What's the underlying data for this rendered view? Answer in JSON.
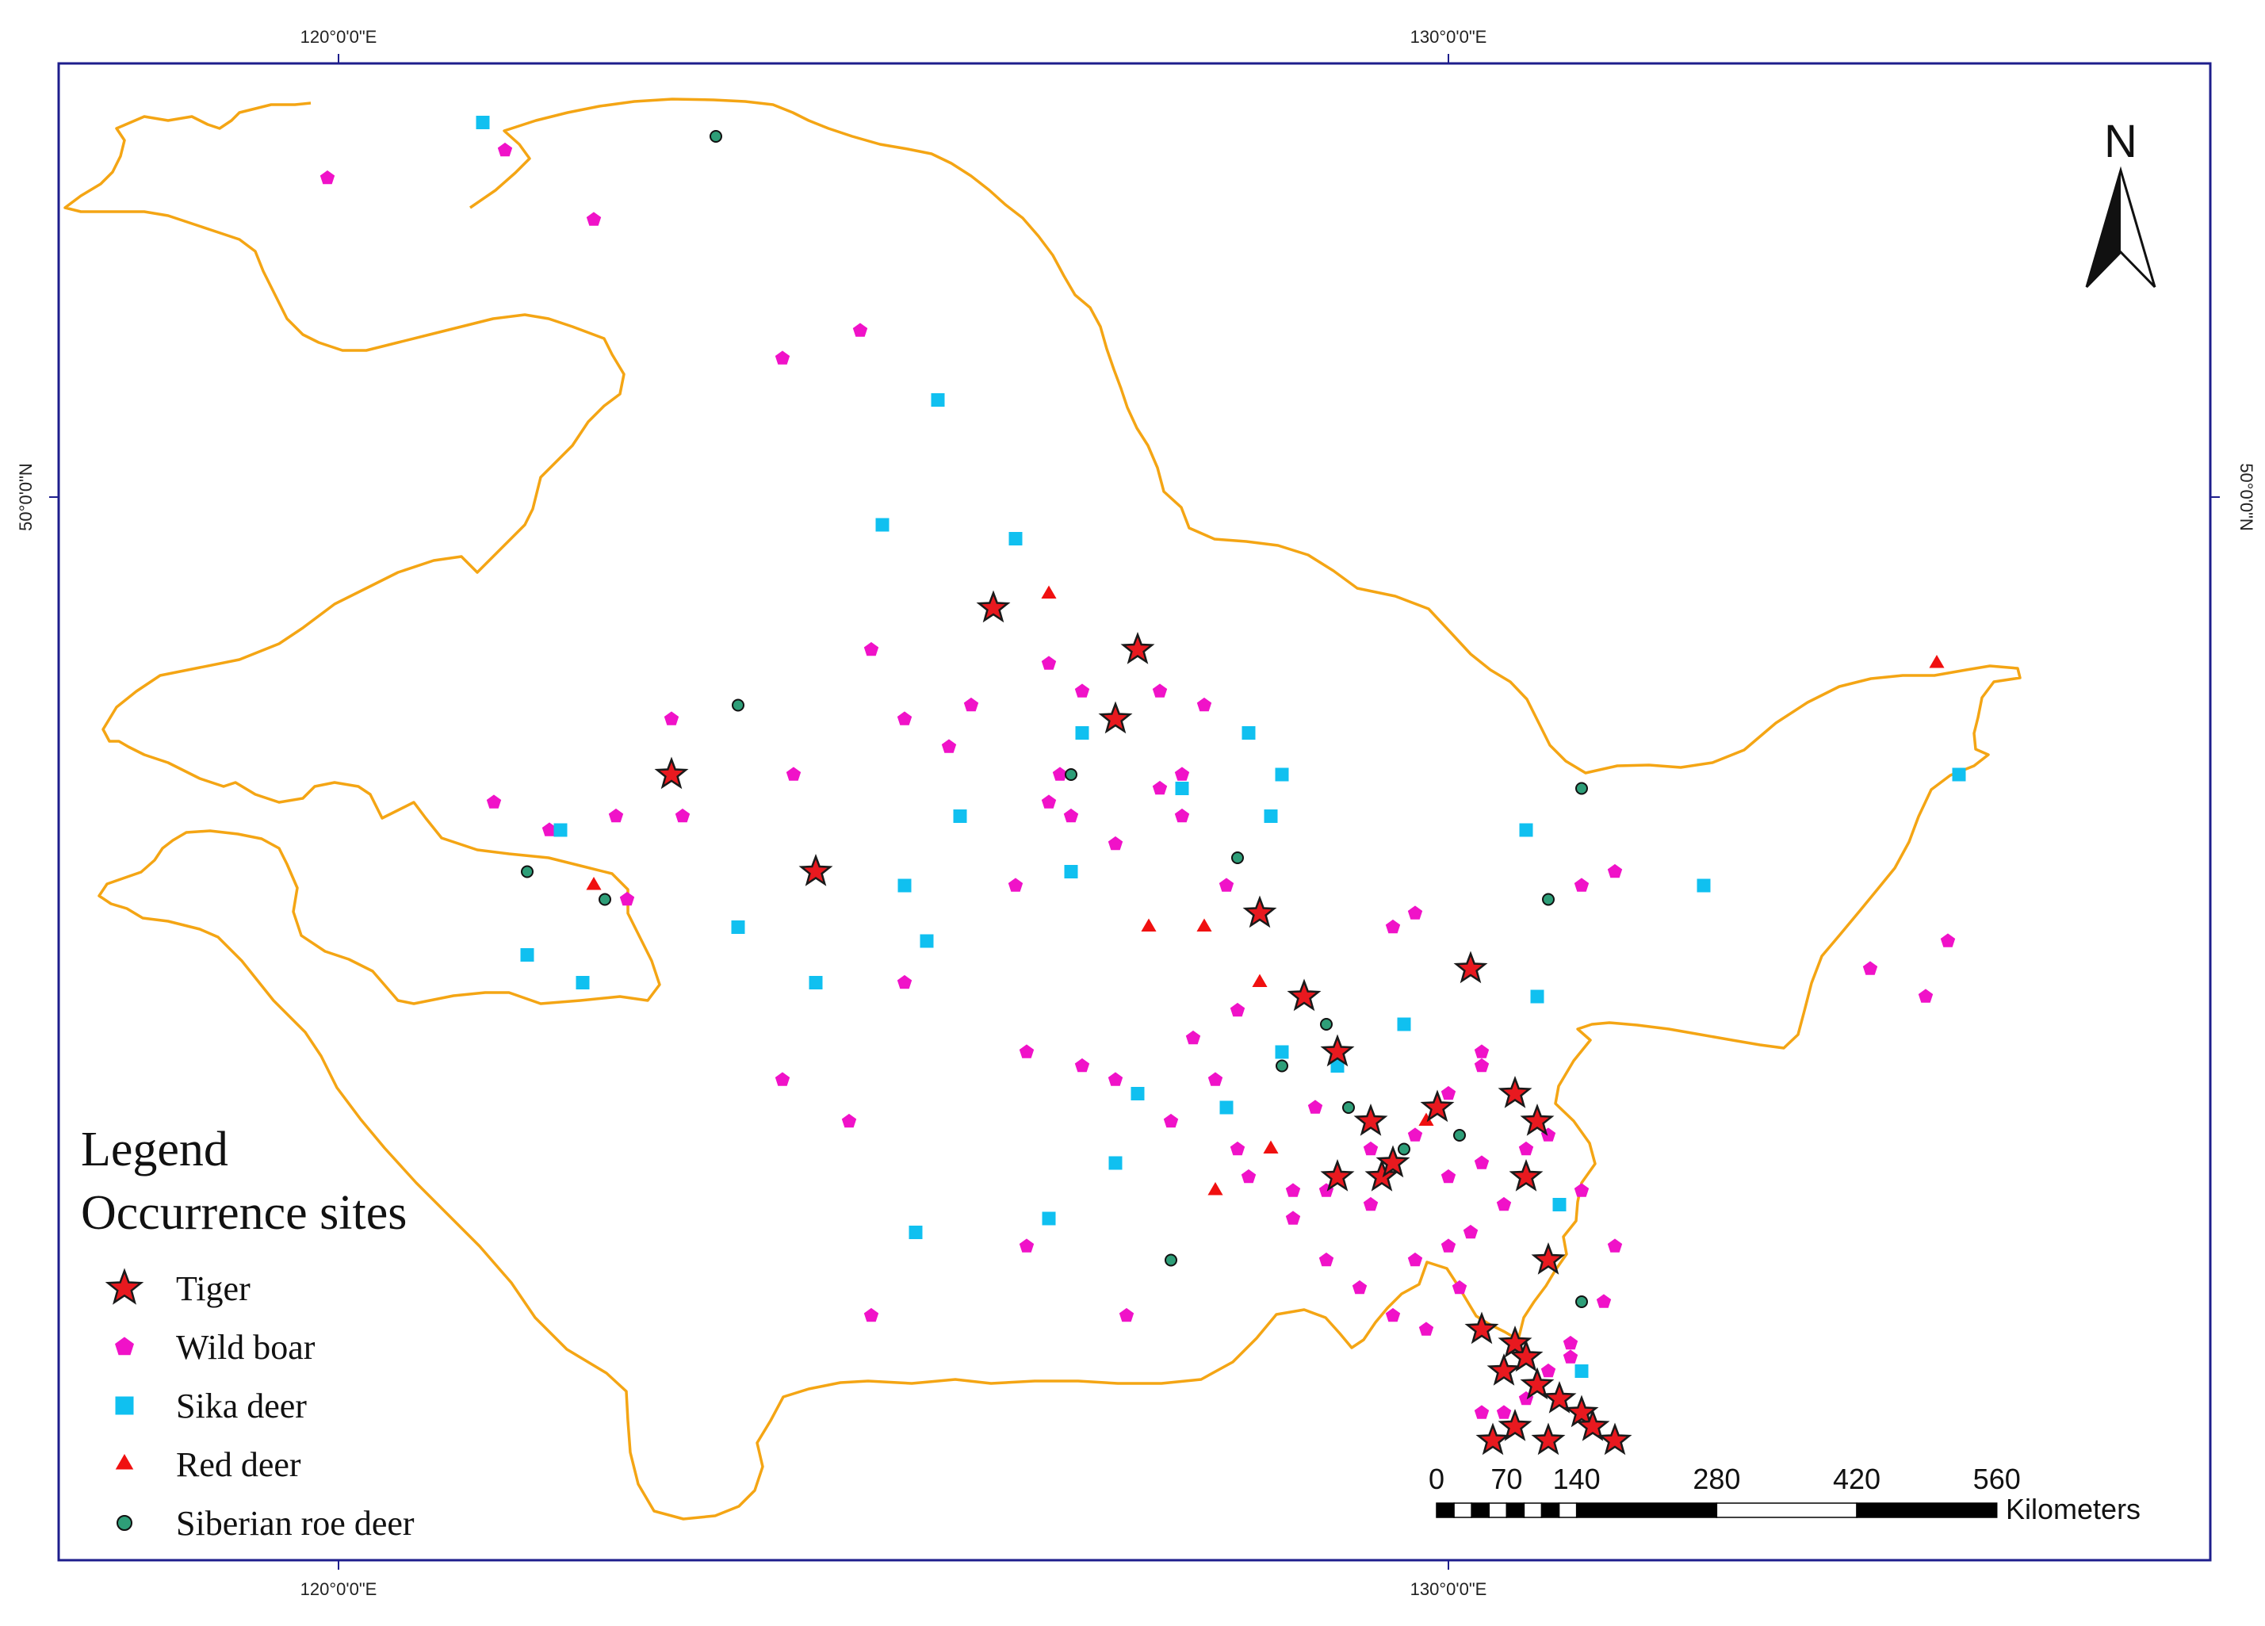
{
  "graticule": {
    "lon_labels": [
      "120°0'0\"E",
      "130°0'0\"E"
    ],
    "lat_label": "50°0'0\"N"
  },
  "north_arrow": {
    "label": "N"
  },
  "legend": {
    "title_line1": "Legend",
    "title_line2": "Occurrence sites",
    "items": [
      {
        "label": "Tiger",
        "symbol": "star",
        "fill": "#e8191f",
        "stroke": "#1a1a1a"
      },
      {
        "label": "Wild boar",
        "symbol": "pentagon",
        "fill": "#f012c8",
        "stroke": "#f012c8"
      },
      {
        "label": "Sika deer",
        "symbol": "square",
        "fill": "#10c0f0",
        "stroke": "#10c0f0"
      },
      {
        "label": "Red deer",
        "symbol": "triangle",
        "fill": "#f01010",
        "stroke": "#f01010"
      },
      {
        "label": "Siberian roe deer",
        "symbol": "circle",
        "fill": "#2e9e78",
        "stroke": "#111111"
      }
    ]
  },
  "scale_bar": {
    "ticks": [
      "0",
      "70",
      "140",
      "280",
      "420",
      "560"
    ],
    "units": "Kilometers"
  },
  "colors": {
    "frame": "#1e1e8c",
    "boundary": "#f4a514"
  },
  "occurrences": {
    "tiger": [
      [
        123.0,
        48.0
      ],
      [
        124.3,
        47.3
      ],
      [
        125.9,
        49.2
      ],
      [
        127.2,
        48.9
      ],
      [
        127.0,
        48.4
      ],
      [
        128.3,
        47.0
      ],
      [
        128.7,
        46.4
      ],
      [
        129.0,
        46.0
      ],
      [
        129.3,
        45.5
      ],
      [
        129.0,
        45.1
      ],
      [
        129.4,
        45.1
      ],
      [
        129.5,
        45.2
      ],
      [
        129.9,
        45.6
      ],
      [
        130.2,
        46.6
      ],
      [
        130.6,
        45.7
      ],
      [
        130.8,
        45.5
      ],
      [
        130.7,
        45.1
      ],
      [
        130.9,
        44.5
      ],
      [
        130.3,
        44.0
      ],
      [
        130.6,
        43.9
      ],
      [
        130.5,
        43.7
      ],
      [
        130.8,
        43.6
      ],
      [
        131.0,
        43.5
      ],
      [
        130.6,
        43.3
      ],
      [
        130.9,
        43.2
      ],
      [
        131.2,
        43.4
      ],
      [
        131.3,
        43.3
      ],
      [
        130.4,
        43.2
      ],
      [
        130.7,
        43.8
      ],
      [
        131.5,
        43.2
      ]
    ],
    "wild_boar": [
      [
        119.9,
        52.3
      ],
      [
        121.5,
        52.5
      ],
      [
        122.3,
        52.0
      ],
      [
        124.0,
        51.0
      ],
      [
        124.7,
        51.2
      ],
      [
        123.0,
        48.4
      ],
      [
        125.1,
        48.4
      ],
      [
        126.7,
        48.6
      ],
      [
        127.0,
        47.5
      ],
      [
        124.8,
        48.9
      ],
      [
        126.4,
        48.8
      ],
      [
        127.4,
        48.6
      ],
      [
        127.8,
        48.5
      ],
      [
        126.5,
        48.0
      ],
      [
        127.6,
        47.7
      ],
      [
        128.0,
        47.2
      ],
      [
        127.4,
        47.9
      ],
      [
        127.6,
        48.0
      ],
      [
        123.1,
        47.7
      ],
      [
        122.5,
        47.7
      ],
      [
        122.6,
        47.1
      ],
      [
        121.4,
        47.8
      ],
      [
        121.9,
        47.6
      ],
      [
        124.1,
        48.0
      ],
      [
        126.1,
        47.2
      ],
      [
        126.6,
        47.7
      ],
      [
        125.7,
        48.5
      ],
      [
        125.1,
        46.5
      ],
      [
        126.2,
        46.0
      ],
      [
        126.7,
        45.9
      ],
      [
        127.0,
        45.8
      ],
      [
        127.5,
        45.5
      ],
      [
        128.2,
        45.1
      ],
      [
        128.6,
        44.8
      ],
      [
        128.9,
        44.5
      ],
      [
        129.2,
        44.3
      ],
      [
        129.5,
        44.1
      ],
      [
        129.8,
        44.0
      ],
      [
        130.1,
        44.3
      ],
      [
        130.0,
        45.7
      ],
      [
        130.3,
        45.9
      ],
      [
        129.5,
        46.9
      ],
      [
        128.1,
        46.3
      ],
      [
        127.7,
        46.1
      ],
      [
        127.9,
        45.8
      ],
      [
        128.1,
        45.3
      ],
      [
        128.6,
        45.0
      ],
      [
        128.9,
        45.0
      ],
      [
        129.3,
        44.9
      ],
      [
        129.7,
        44.5
      ],
      [
        130.2,
        44.7
      ],
      [
        130.5,
        44.9
      ],
      [
        130.7,
        45.3
      ],
      [
        130.9,
        45.4
      ],
      [
        131.2,
        45.0
      ],
      [
        131.5,
        44.6
      ],
      [
        131.4,
        44.2
      ],
      [
        131.1,
        43.9
      ],
      [
        130.9,
        43.7
      ],
      [
        130.7,
        43.5
      ],
      [
        130.5,
        43.4
      ],
      [
        130.3,
        43.4
      ],
      [
        130.6,
        43.9
      ],
      [
        131.1,
        43.8
      ],
      [
        129.7,
        47.0
      ],
      [
        130.3,
        46.0
      ],
      [
        131.2,
        47.2
      ],
      [
        131.5,
        47.3
      ],
      [
        133.8,
        46.6
      ],
      [
        134.3,
        46.4
      ],
      [
        134.5,
        46.8
      ],
      [
        125.5,
        48.2
      ],
      [
        126.4,
        47.8
      ],
      [
        124.0,
        45.8
      ],
      [
        124.6,
        45.5
      ],
      [
        126.2,
        44.6
      ],
      [
        127.1,
        44.1
      ],
      [
        128.8,
        45.6
      ],
      [
        129.3,
        45.3
      ],
      [
        129.7,
        45.4
      ],
      [
        130.0,
        45.1
      ],
      [
        130.3,
        45.2
      ],
      [
        130.0,
        44.6
      ],
      [
        124.8,
        44.1
      ]
    ],
    "sika_deer": [
      [
        121.3,
        52.7
      ],
      [
        125.4,
        50.7
      ],
      [
        124.9,
        49.8
      ],
      [
        126.1,
        49.7
      ],
      [
        126.7,
        48.3
      ],
      [
        127.6,
        47.9
      ],
      [
        128.2,
        48.3
      ],
      [
        128.5,
        48.0
      ],
      [
        128.4,
        47.7
      ],
      [
        130.7,
        47.6
      ],
      [
        132.3,
        47.2
      ],
      [
        134.6,
        48.0
      ],
      [
        125.6,
        47.7
      ],
      [
        125.1,
        47.2
      ],
      [
        126.6,
        47.3
      ],
      [
        122.0,
        47.6
      ],
      [
        121.7,
        46.7
      ],
      [
        122.2,
        46.5
      ],
      [
        123.6,
        46.9
      ],
      [
        124.3,
        46.5
      ],
      [
        125.3,
        46.8
      ],
      [
        128.5,
        46.0
      ],
      [
        129.6,
        46.2
      ],
      [
        130.8,
        46.4
      ],
      [
        131.0,
        44.9
      ],
      [
        131.2,
        43.7
      ],
      [
        127.0,
        45.2
      ],
      [
        125.2,
        44.7
      ],
      [
        126.4,
        44.8
      ],
      [
        127.2,
        45.7
      ],
      [
        128.0,
        45.6
      ],
      [
        129.0,
        45.9
      ]
    ],
    "red_deer": [
      [
        126.4,
        49.3
      ],
      [
        127.3,
        46.9
      ],
      [
        127.8,
        46.9
      ],
      [
        128.3,
        46.5
      ],
      [
        128.4,
        45.3
      ],
      [
        127.9,
        45.0
      ],
      [
        122.3,
        47.2
      ],
      [
        134.4,
        48.8
      ],
      [
        129.8,
        45.5
      ]
    ],
    "siberian_roe_deer": [
      [
        123.4,
        52.6
      ],
      [
        123.6,
        48.5
      ],
      [
        126.6,
        48.0
      ],
      [
        121.7,
        47.3
      ],
      [
        122.4,
        47.1
      ],
      [
        128.1,
        47.4
      ],
      [
        131.2,
        47.9
      ],
      [
        130.9,
        47.1
      ],
      [
        128.9,
        46.2
      ],
      [
        128.5,
        45.9
      ],
      [
        129.1,
        45.6
      ],
      [
        129.6,
        45.3
      ],
      [
        127.5,
        44.5
      ],
      [
        131.2,
        44.2
      ],
      [
        130.1,
        45.4
      ]
    ]
  }
}
